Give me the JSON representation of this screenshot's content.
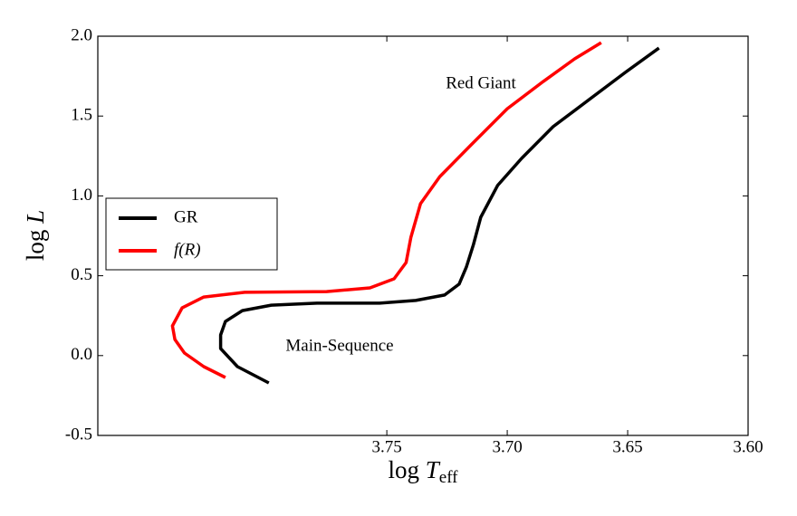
{
  "chart_data": {
    "type": "line",
    "ylabel": {
      "base": "log ",
      "var": "L"
    },
    "xlabel": {
      "base": "log ",
      "var": "T",
      "sub": "eff"
    },
    "xlim": [
      3.87,
      3.6
    ],
    "ylim": [
      -0.5,
      2.0
    ],
    "xticks": [
      3.75,
      {
        "value": 3.7,
        "label": "3.70"
      },
      3.65,
      {
        "value": 3.6,
        "label": "3.60"
      }
    ],
    "yticks": [
      -0.5,
      {
        "value": 0,
        "label": "0.0"
      },
      0.5,
      {
        "value": 1,
        "label": "1.0"
      },
      1.5,
      {
        "value": 2,
        "label": "2.0"
      }
    ],
    "legend": "center left",
    "annotations": [
      "Red Giant",
      "Main-Sequence"
    ],
    "series": [
      {
        "name": "GR",
        "color": "#000000",
        "x": [
          3.799,
          3.812,
          3.819,
          3.819,
          3.817,
          3.81,
          3.798,
          3.779,
          3.753,
          3.738,
          3.726,
          3.72,
          3.717,
          3.714,
          3.711,
          3.704,
          3.694,
          3.681,
          3.666,
          3.651,
          3.637
        ],
        "values": [
          -0.171,
          -0.069,
          0.044,
          0.129,
          0.214,
          0.282,
          0.316,
          0.328,
          0.328,
          0.345,
          0.379,
          0.447,
          0.554,
          0.696,
          0.866,
          1.065,
          1.235,
          1.433,
          1.603,
          1.773,
          1.926
        ]
      },
      {
        "name": "f(R)",
        "color": "#ff0000",
        "x": [
          3.817,
          3.826,
          3.834,
          3.838,
          3.839,
          3.835,
          3.826,
          3.809,
          3.775,
          3.757,
          3.747,
          3.742,
          3.74,
          3.736,
          3.728,
          3.715,
          3.7,
          3.685,
          3.672,
          3.661
        ],
        "values": [
          -0.137,
          -0.069,
          0.016,
          0.101,
          0.186,
          0.299,
          0.367,
          0.396,
          0.401,
          0.424,
          0.481,
          0.583,
          0.741,
          0.951,
          1.121,
          1.32,
          1.546,
          1.717,
          1.858,
          1.96
        ]
      }
    ]
  }
}
